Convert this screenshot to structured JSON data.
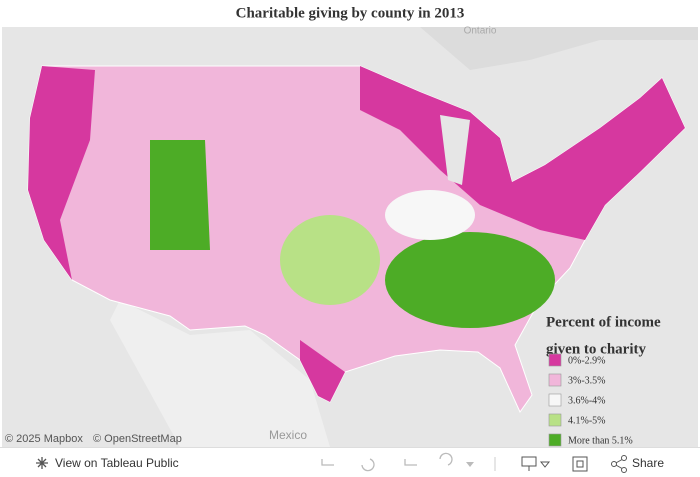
{
  "title": "Charitable giving by county in 2013",
  "map_labels": {
    "north": "Ontario",
    "south": "Mexico"
  },
  "attribution": [
    "© 2025 Mapbox",
    "© OpenStreetMap"
  ],
  "legend": {
    "title_lines": [
      "Percent of income",
      "given to charity"
    ],
    "items": [
      {
        "label": "0%-2.9%",
        "color": "#d6389f"
      },
      {
        "label": "3%-3.5%",
        "color": "#f1b6da"
      },
      {
        "label": "3.6%-4%",
        "color": "#f7f7f7"
      },
      {
        "label": "4.1%-5%",
        "color": "#b8e186"
      },
      {
        "label": "More than 5.1%",
        "color": "#4dac26"
      }
    ]
  },
  "toolbar": {
    "view": "View on Tableau Public",
    "share": "Share"
  }
}
